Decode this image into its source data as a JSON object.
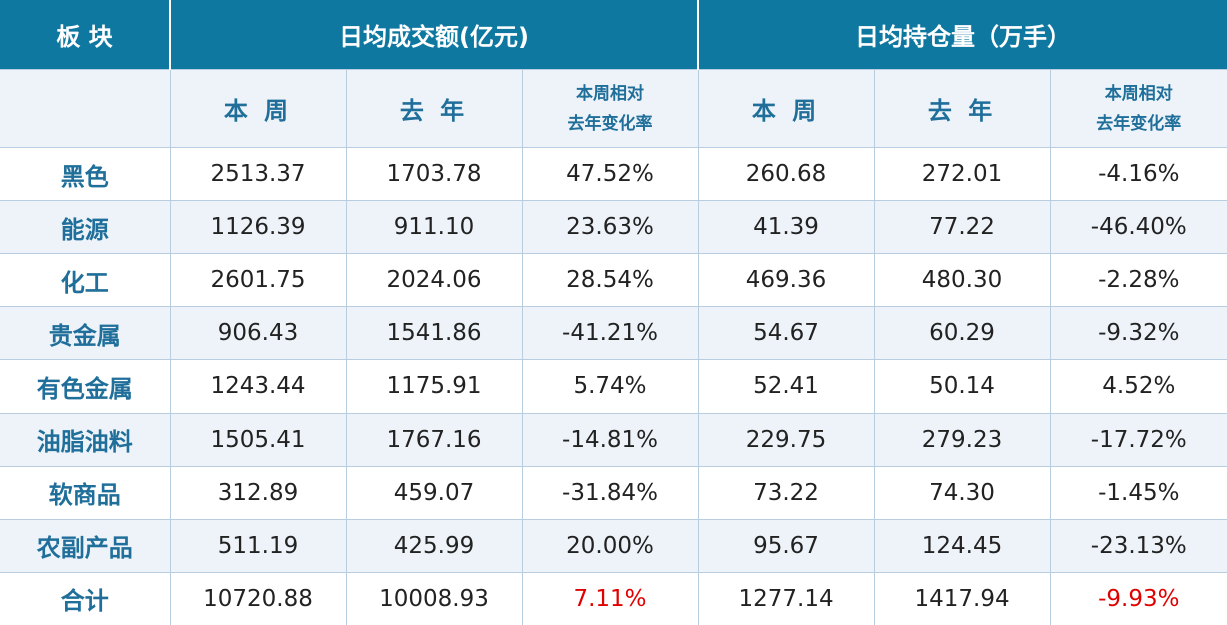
{
  "header": {
    "sector": "板 块",
    "group_turnover": "日均成交额(亿元)",
    "group_position": "日均持仓量（万手）"
  },
  "subheader": {
    "turnover_this_week": "本 周",
    "turnover_last_year": "去 年",
    "turnover_change_l1": "本周相对",
    "turnover_change_l2": "去年变化率",
    "position_this_week": "本 周",
    "position_last_year": "去 年",
    "position_change_l1": "本周相对",
    "position_change_l2": "去年变化率"
  },
  "rows": [
    {
      "sector": "黑色",
      "t_week": "2513.37",
      "t_year": "1703.78",
      "t_chg": "47.52%",
      "p_week": "260.68",
      "p_year": "272.01",
      "p_chg": "-4.16%"
    },
    {
      "sector": "能源",
      "t_week": "1126.39",
      "t_year": "911.10",
      "t_chg": "23.63%",
      "p_week": "41.39",
      "p_year": "77.22",
      "p_chg": "-46.40%"
    },
    {
      "sector": "化工",
      "t_week": "2601.75",
      "t_year": "2024.06",
      "t_chg": "28.54%",
      "p_week": "469.36",
      "p_year": "480.30",
      "p_chg": "-2.28%"
    },
    {
      "sector": "贵金属",
      "t_week": "906.43",
      "t_year": "1541.86",
      "t_chg": "-41.21%",
      "p_week": "54.67",
      "p_year": "60.29",
      "p_chg": "-9.32%"
    },
    {
      "sector": "有色金属",
      "t_week": "1243.44",
      "t_year": "1175.91",
      "t_chg": "5.74%",
      "p_week": "52.41",
      "p_year": "50.14",
      "p_chg": "4.52%"
    },
    {
      "sector": "油脂油料",
      "t_week": "1505.41",
      "t_year": "1767.16",
      "t_chg": "-14.81%",
      "p_week": "229.75",
      "p_year": "279.23",
      "p_chg": "-17.72%"
    },
    {
      "sector": "软商品",
      "t_week": "312.89",
      "t_year": "459.07",
      "t_chg": "-31.84%",
      "p_week": "73.22",
      "p_year": "74.30",
      "p_chg": "-1.45%"
    },
    {
      "sector": "农副产品",
      "t_week": "511.19",
      "t_year": "425.99",
      "t_chg": "20.00%",
      "p_week": "95.67",
      "p_year": "124.45",
      "p_chg": "-23.13%"
    },
    {
      "sector": "合计",
      "t_week": "10720.88",
      "t_year": "10008.93",
      "t_chg": "7.11%",
      "p_week": "1277.14",
      "p_year": "1417.94",
      "p_chg": "-9.93%"
    }
  ],
  "colors": {
    "header_bg": "#0e78a0",
    "label_blue": "#1f6f9a",
    "alt_row": "#edf3f9",
    "highlight_red": "#e00000"
  }
}
